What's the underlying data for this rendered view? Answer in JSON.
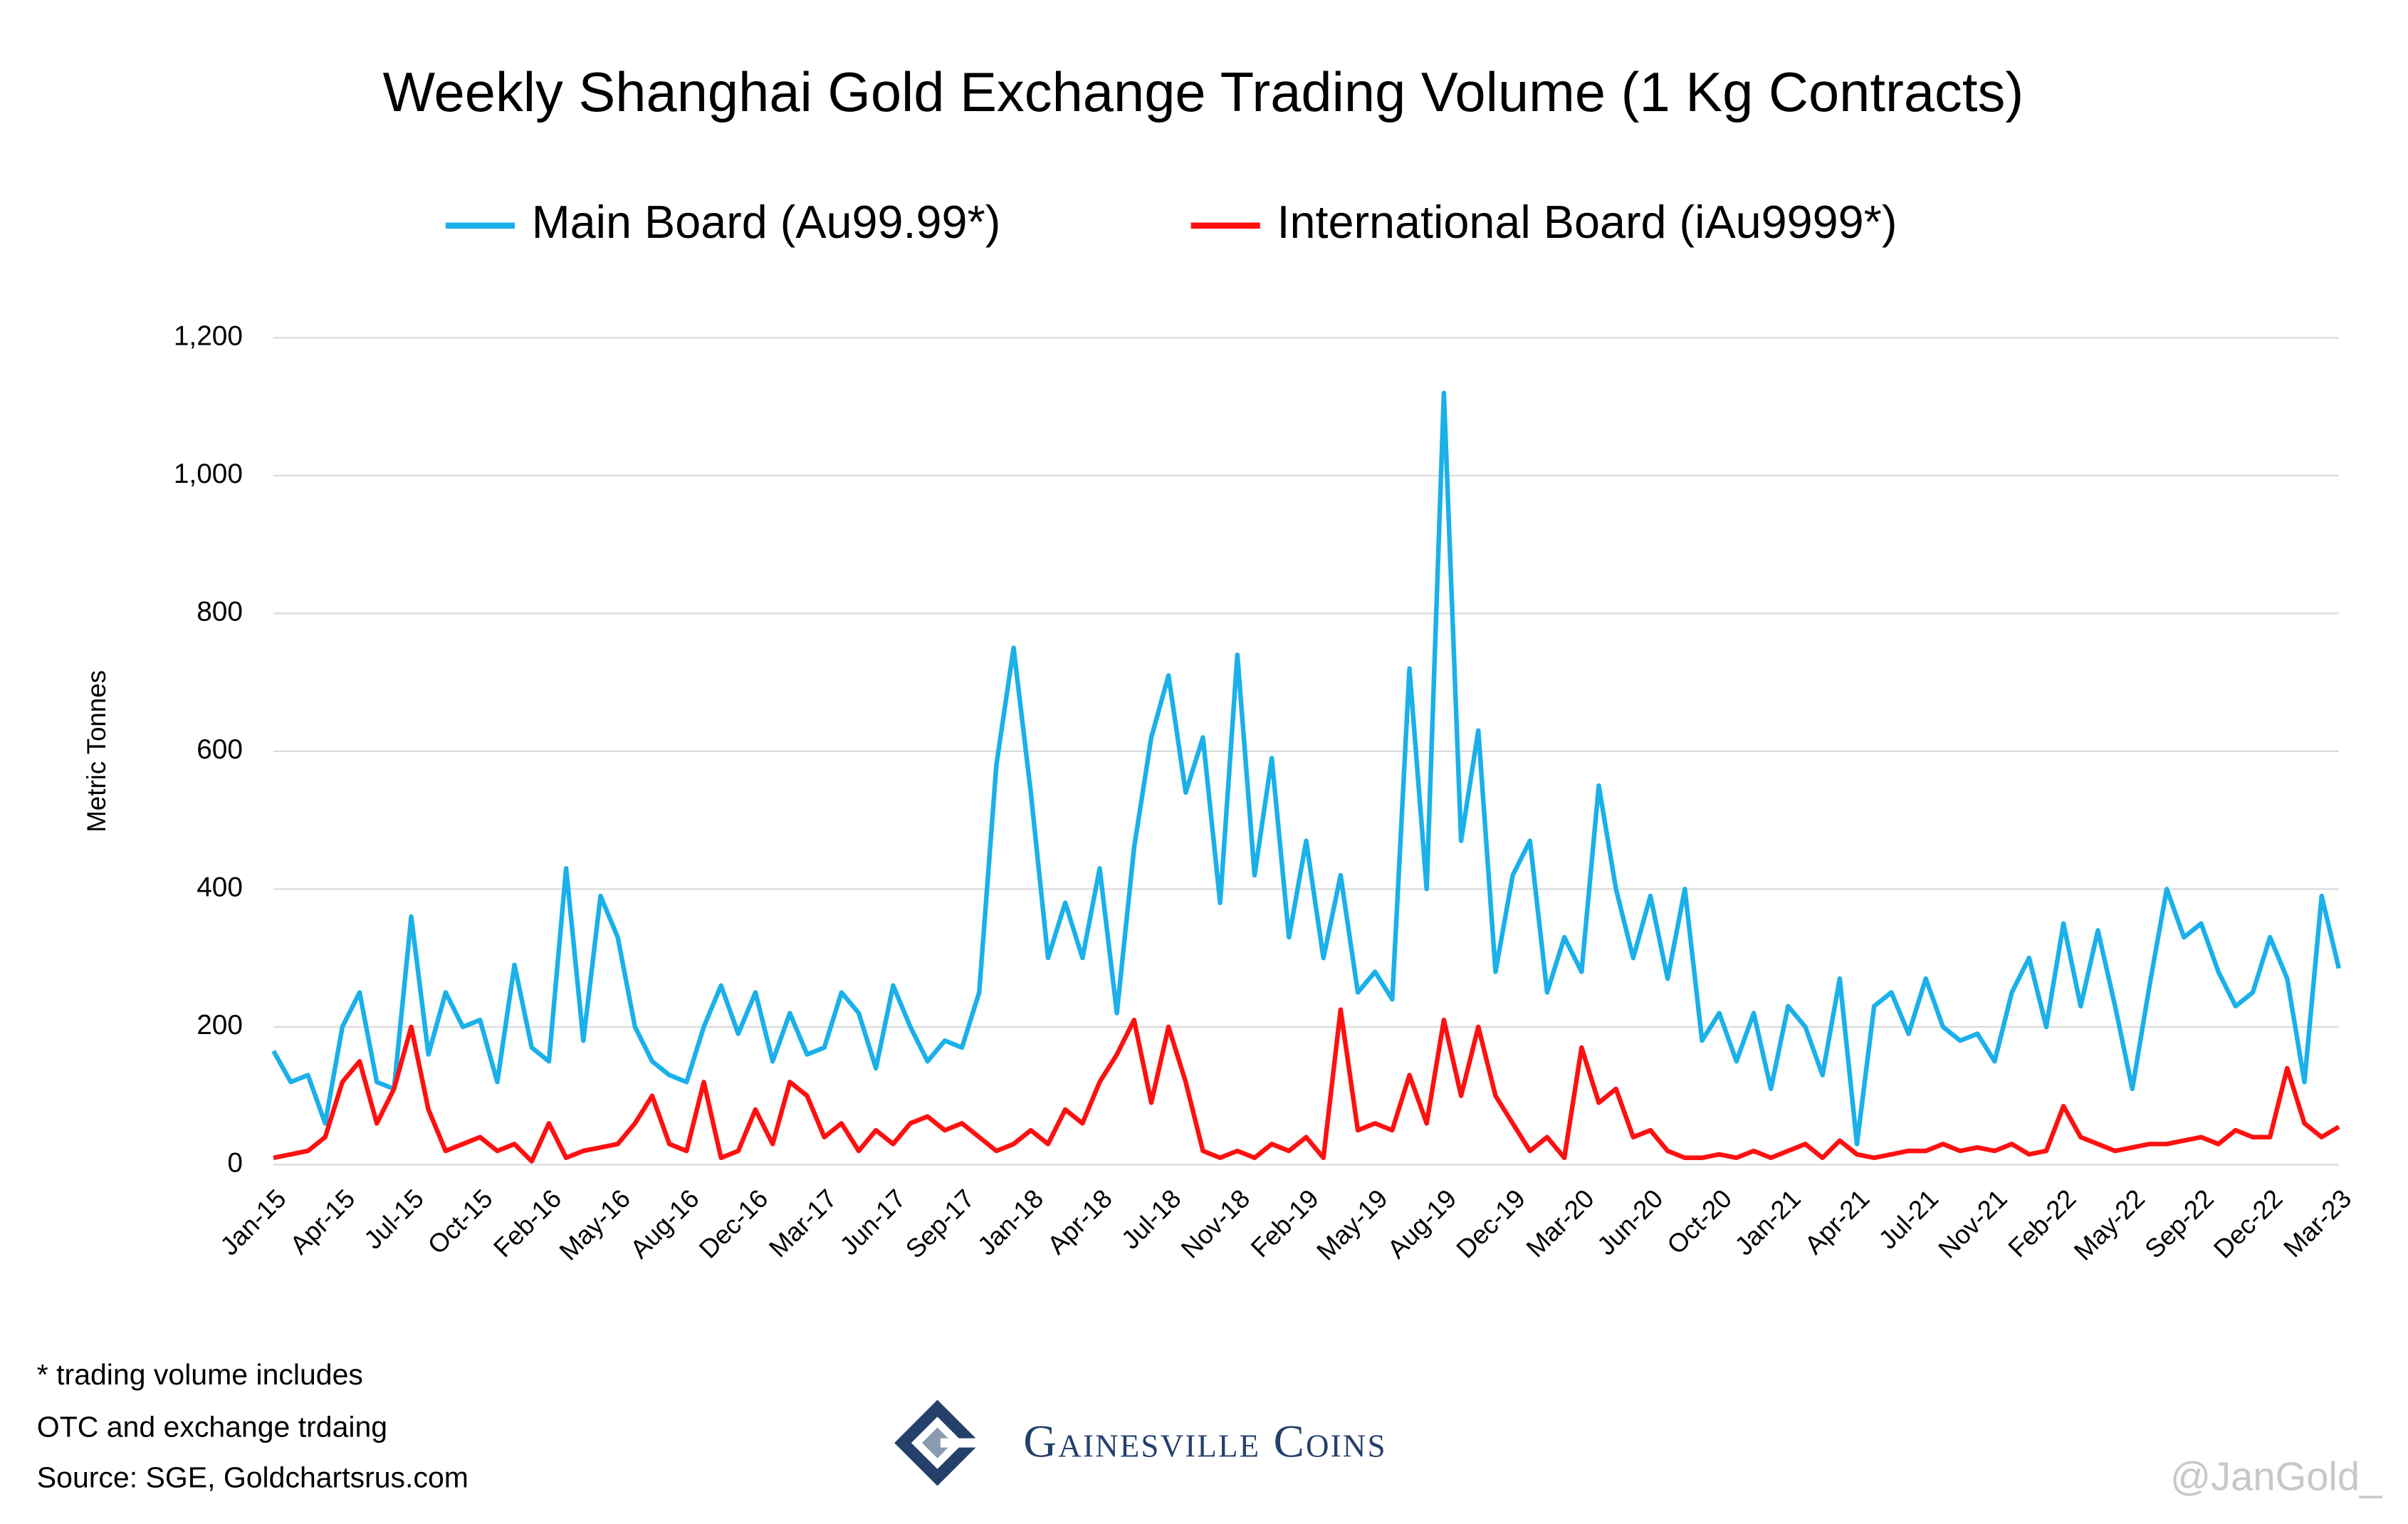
{
  "chart_data": {
    "type": "line",
    "title": "Weekly Shanghai Gold Exchange Trading Volume (1 Kg Contracts)",
    "y_label": "Metric Tonnes",
    "categories": [
      "Jan-15",
      null,
      null,
      null,
      "Apr-15",
      null,
      null,
      null,
      "Jul-15",
      null,
      null,
      null,
      "Oct-15",
      null,
      null,
      null,
      "Feb-16",
      null,
      null,
      null,
      "May-16",
      null,
      null,
      null,
      "Aug-16",
      null,
      null,
      null,
      "Dec-16",
      null,
      null,
      null,
      "Mar-17",
      null,
      null,
      null,
      "Jun-17",
      null,
      null,
      null,
      "Sep-17",
      null,
      null,
      null,
      "Jan-18",
      null,
      null,
      null,
      "Apr-18",
      null,
      null,
      null,
      "Jul-18",
      null,
      null,
      null,
      "Nov-18",
      null,
      null,
      null,
      "Feb-19",
      null,
      null,
      null,
      "May-19",
      null,
      null,
      null,
      "Aug-19",
      null,
      null,
      null,
      "Dec-19",
      null,
      null,
      null,
      "Mar-20",
      null,
      null,
      null,
      "Jun-20",
      null,
      null,
      null,
      "Oct-20",
      null,
      null,
      null,
      "Jan-21",
      null,
      null,
      null,
      "Apr-21",
      null,
      null,
      null,
      "Jul-21",
      null,
      null,
      null,
      "Nov-21",
      null,
      null,
      null,
      "Feb-22",
      null,
      null,
      null,
      "May-22",
      null,
      null,
      null,
      "Sep-22",
      null,
      null,
      null,
      "Dec-22",
      null,
      null,
      null,
      "Mar-23"
    ],
    "series": [
      {
        "name": "Main Board (Au99.99*)",
        "color": "#1ab0ea",
        "values": [
          165,
          120,
          130,
          60,
          200,
          250,
          120,
          110,
          360,
          160,
          250,
          200,
          210,
          120,
          290,
          170,
          150,
          430,
          180,
          390,
          330,
          200,
          150,
          130,
          120,
          200,
          260,
          190,
          250,
          150,
          220,
          160,
          170,
          250,
          220,
          140,
          260,
          200,
          150,
          180,
          170,
          250,
          580,
          750,
          540,
          300,
          380,
          300,
          430,
          220,
          460,
          620,
          710,
          540,
          620,
          380,
          740,
          420,
          590,
          330,
          470,
          300,
          420,
          250,
          280,
          240,
          720,
          400,
          1120,
          470,
          630,
          280,
          420,
          470,
          250,
          330,
          280,
          550,
          400,
          300,
          390,
          270,
          400,
          180,
          220,
          150,
          220,
          110,
          230,
          200,
          130,
          270,
          30,
          230,
          250,
          190,
          270,
          200,
          180,
          190,
          150,
          250,
          300,
          200,
          350,
          230,
          340,
          230,
          110,
          260,
          400,
          330,
          350,
          280,
          230,
          250,
          330,
          270,
          120,
          390,
          285
        ]
      },
      {
        "name": "International Board (iAu9999*)",
        "color": "#ff1010",
        "values": [
          10,
          15,
          20,
          40,
          120,
          150,
          60,
          110,
          200,
          80,
          20,
          30,
          40,
          20,
          30,
          5,
          60,
          10,
          20,
          25,
          30,
          60,
          100,
          30,
          20,
          120,
          10,
          20,
          80,
          30,
          120,
          100,
          40,
          60,
          20,
          50,
          30,
          60,
          70,
          50,
          60,
          40,
          20,
          30,
          50,
          30,
          80,
          60,
          120,
          160,
          210,
          90,
          200,
          120,
          20,
          10,
          20,
          10,
          30,
          20,
          40,
          10,
          225,
          50,
          60,
          50,
          130,
          60,
          210,
          100,
          200,
          100,
          60,
          20,
          40,
          10,
          170,
          90,
          110,
          40,
          50,
          20,
          10,
          10,
          15,
          10,
          20,
          10,
          20,
          30,
          10,
          35,
          15,
          10,
          15,
          20,
          20,
          30,
          20,
          25,
          20,
          30,
          15,
          20,
          85,
          40,
          30,
          20,
          25,
          30,
          30,
          35,
          40,
          30,
          50,
          40,
          40,
          140,
          60,
          40,
          55
        ]
      }
    ],
    "ylim": [
      0,
      1200
    ],
    "yticks": [
      0,
      200,
      400,
      600,
      800,
      {
        "value": 1000,
        "label": "1,000"
      },
      {
        "value": 1200,
        "label": "1,200"
      }
    ],
    "grid": true,
    "legend": "top",
    "footnotes": [
      "* trading volume includes",
      "OTC and exchange trdaing",
      "Source: SGE, Goldchartsrus.com"
    ],
    "brand": "Gainesville Coins",
    "watermark": "@JanGold_"
  }
}
